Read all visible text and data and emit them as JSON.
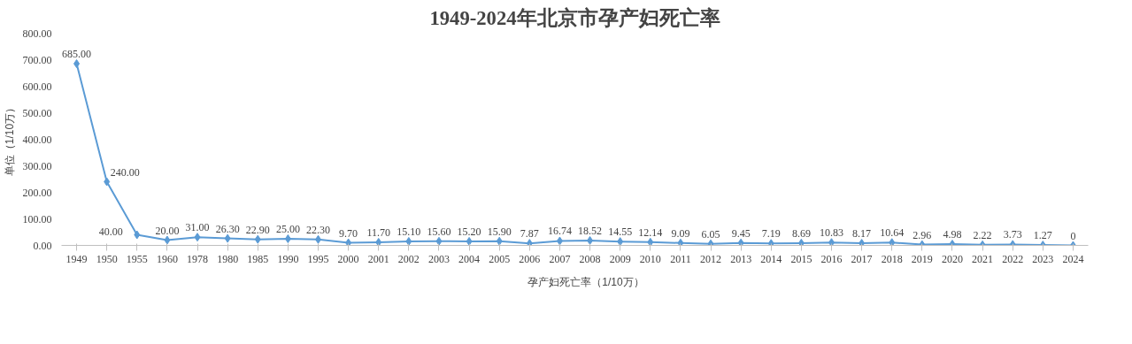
{
  "chart_data": {
    "type": "line",
    "title": "1949-2024年北京市孕产妇死亡率",
    "ylabel": "单位（1/10万）",
    "categories": [
      "1949",
      "1950",
      "1955",
      "1960",
      "1978",
      "1980",
      "1985",
      "1990",
      "1995",
      "2000",
      "2001",
      "2002",
      "2003",
      "2004",
      "2005",
      "2006",
      "2007",
      "2008",
      "2009",
      "2010",
      "2011",
      "2012",
      "2013",
      "2014",
      "2015",
      "2016",
      "2017",
      "2018",
      "2019",
      "2020",
      "2021",
      "2022",
      "2023",
      "2024"
    ],
    "series": [
      {
        "name": "孕产妇死亡率（1/10万）",
        "color": "#5b9bd5",
        "values": [
          685.0,
          240.0,
          40.0,
          20.0,
          31.0,
          26.3,
          22.9,
          25.0,
          22.3,
          9.7,
          11.7,
          15.1,
          15.6,
          15.2,
          15.9,
          7.87,
          16.74,
          18.52,
          14.55,
          12.14,
          9.09,
          6.05,
          9.45,
          7.19,
          8.69,
          10.83,
          8.17,
          10.64,
          2.96,
          4.98,
          2.22,
          3.73,
          1.27,
          0
        ],
        "value_labels": [
          "685.00",
          "240.00",
          "40.00",
          "20.00",
          "31.00",
          "26.30",
          "22.90",
          "25.00",
          "22.30",
          "9.70",
          "11.70",
          "15.10",
          "15.60",
          "15.20",
          "15.90",
          "7.87",
          "16.74",
          "18.52",
          "14.55",
          "12.14",
          "9.09",
          "6.05",
          "9.45",
          "7.19",
          "8.69",
          "10.83",
          "8.17",
          "10.64",
          "2.96",
          "4.98",
          "2.22",
          "3.73",
          "1.27",
          "0"
        ]
      }
    ],
    "ylim": [
      0,
      800
    ],
    "yticks": [
      {
        "value": 0,
        "label": "0.00"
      },
      {
        "value": 100,
        "label": "100.00"
      },
      {
        "value": 200,
        "label": "200.00"
      },
      {
        "value": 300,
        "label": "300.00"
      },
      {
        "value": 400,
        "label": "400.00"
      },
      {
        "value": 500,
        "label": "500.00"
      },
      {
        "value": 600,
        "label": "600.00"
      },
      {
        "value": 700,
        "label": "700.00"
      },
      {
        "value": 800,
        "label": "800.00"
      }
    ],
    "grid": false,
    "legend": "bottom",
    "marker": "diamond",
    "line_style": "solid"
  }
}
